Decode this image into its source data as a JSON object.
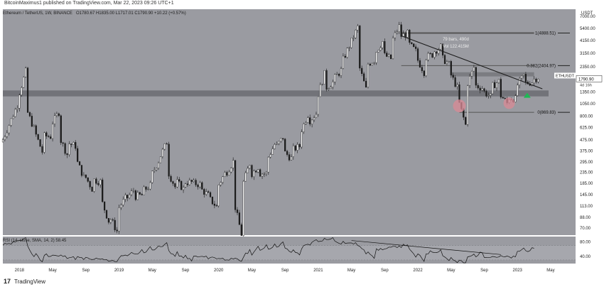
{
  "header": {
    "published": "BitcoinMaximus1 published on TradingView.com, Mar 22, 2023 09:26 UTC+1"
  },
  "legend": {
    "symbol": "Ethereum / TetherUS, 1W, BINANCE",
    "ohlc": "O1780.67  H1835.00  L1717.01  C1790.90  +10.22 (+0.57%)"
  },
  "rsi_legend": "RSI (14, close, SMA, 14, 2)   58.45",
  "price_axis": {
    "currency": "USDT",
    "last_price": "1790.90",
    "ticker": "ETHUSDT",
    "countdown": "4d 16h"
  },
  "annotations": {
    "bars": "79 bars, 490d",
    "volume": "Vol 122.415M"
  },
  "fib_levels": [
    {
      "label": "1(4888.51)",
      "price": 4888.51
    },
    {
      "label": "0.382(2404.97)",
      "price": 2404.97
    },
    {
      "label": "0(869.83)",
      "price": 869.83
    }
  ],
  "footer": {
    "logo": "17",
    "name": "TradingView"
  },
  "colors": {
    "pane": "#9a9ba1",
    "candle": "#1a1a1a",
    "support_zone": "#6e6f74",
    "resistance": "#1a1a1a",
    "circle": "#d98a96",
    "arrow": "#1db954",
    "rsi_line": "#111111"
  },
  "chart_data": {
    "type": "candlestick",
    "scale": "log",
    "ylim": [
      60,
      8200
    ],
    "xlim": [
      "2017-11",
      "2023-08"
    ],
    "y_ticks": [
      7000.0,
      5400.0,
      4150.0,
      3150.0,
      2350.0,
      1750.0,
      1350.0,
      1050.0,
      800.0,
      625.0,
      475.0,
      375.0,
      295.0,
      235.0,
      185.0,
      145.0,
      113.0,
      88.0,
      70.0
    ],
    "x_ticks": [
      "2018",
      "May",
      "Sep",
      "2019",
      "May",
      "Sep",
      "2020",
      "May",
      "Sep",
      "2021",
      "May",
      "Sep",
      "2022",
      "May",
      "Sep",
      "2023",
      "May"
    ],
    "price_path": [
      [
        "2017-11",
        480
      ],
      [
        "2017-12",
        740
      ],
      [
        "2018-01",
        1350
      ],
      [
        "2018-02",
        860
      ],
      [
        "2018-03",
        530
      ],
      [
        "2018-04",
        520
      ],
      [
        "2018-05",
        700
      ],
      [
        "2018-06",
        470
      ],
      [
        "2018-07",
        440
      ],
      [
        "2018-08",
        290
      ],
      [
        "2018-09",
        210
      ],
      [
        "2018-10",
        200
      ],
      [
        "2018-11",
        120
      ],
      [
        "2018-12",
        85
      ],
      [
        "2019-01",
        110
      ],
      [
        "2019-02",
        136
      ],
      [
        "2019-03",
        140
      ],
      [
        "2019-04",
        160
      ],
      [
        "2019-05",
        230
      ],
      [
        "2019-06",
        340
      ],
      [
        "2019-07",
        230
      ],
      [
        "2019-08",
        190
      ],
      [
        "2019-09",
        190
      ],
      [
        "2019-10",
        185
      ],
      [
        "2019-11",
        160
      ],
      [
        "2019-12",
        130
      ],
      [
        "2020-01",
        180
      ],
      [
        "2020-02",
        240
      ],
      [
        "2020-03",
        110
      ],
      [
        "2020-04",
        190
      ],
      [
        "2020-05",
        230
      ],
      [
        "2020-06",
        230
      ],
      [
        "2020-07",
        330
      ],
      [
        "2020-08",
        420
      ],
      [
        "2020-09",
        360
      ],
      [
        "2020-10",
        390
      ],
      [
        "2020-11",
        600
      ],
      [
        "2020-12",
        730
      ],
      [
        "2021-01",
        1300
      ],
      [
        "2021-02",
        1500
      ],
      [
        "2021-03",
        1850
      ],
      [
        "2021-04",
        2750
      ],
      [
        "2021-05",
        4100
      ],
      [
        "2021-06",
        2250
      ],
      [
        "2021-07",
        2500
      ],
      [
        "2021-08",
        3300
      ],
      [
        "2021-09",
        3000
      ],
      [
        "2021-10",
        4300
      ],
      [
        "2021-11",
        4600
      ],
      [
        "2021-12",
        3800
      ],
      [
        "2022-01",
        2700
      ],
      [
        "2022-02",
        2900
      ],
      [
        "2022-03",
        3300
      ],
      [
        "2022-04",
        2800
      ],
      [
        "2022-05",
        1950
      ],
      [
        "2022-06",
        1050
      ],
      [
        "2022-07",
        1650
      ],
      [
        "2022-08",
        1550
      ],
      [
        "2022-09",
        1350
      ],
      [
        "2022-10",
        1550
      ],
      [
        "2022-11",
        1250
      ],
      [
        "2022-12",
        1200
      ],
      [
        "2023-01",
        1580
      ],
      [
        "2023-02",
        1640
      ],
      [
        "2023-03",
        1790
      ]
    ],
    "rsi": {
      "ylim": [
        20,
        95
      ],
      "y_ticks": [
        80.0,
        40.0
      ],
      "last": 58.45,
      "path": [
        [
          "2017-11",
          70
        ],
        [
          "2018-01",
          82
        ],
        [
          "2018-03",
          48
        ],
        [
          "2018-06",
          42
        ],
        [
          "2018-09",
          35
        ],
        [
          "2018-12",
          30
        ],
        [
          "2019-03",
          45
        ],
        [
          "2019-06",
          63
        ],
        [
          "2019-09",
          42
        ],
        [
          "2019-12",
          38
        ],
        [
          "2020-03",
          32
        ],
        [
          "2020-06",
          55
        ],
        [
          "2020-08",
          68
        ],
        [
          "2020-10",
          55
        ],
        [
          "2020-12",
          72
        ],
        [
          "2021-02",
          85
        ],
        [
          "2021-05",
          78
        ],
        [
          "2021-07",
          55
        ],
        [
          "2021-09",
          60
        ],
        [
          "2021-11",
          68
        ],
        [
          "2022-01",
          45
        ],
        [
          "2022-03",
          52
        ],
        [
          "2022-06",
          30
        ],
        [
          "2022-08",
          42
        ],
        [
          "2022-10",
          40
        ],
        [
          "2022-12",
          38
        ],
        [
          "2023-01",
          52
        ],
        [
          "2023-03",
          58.45
        ]
      ]
    }
  }
}
